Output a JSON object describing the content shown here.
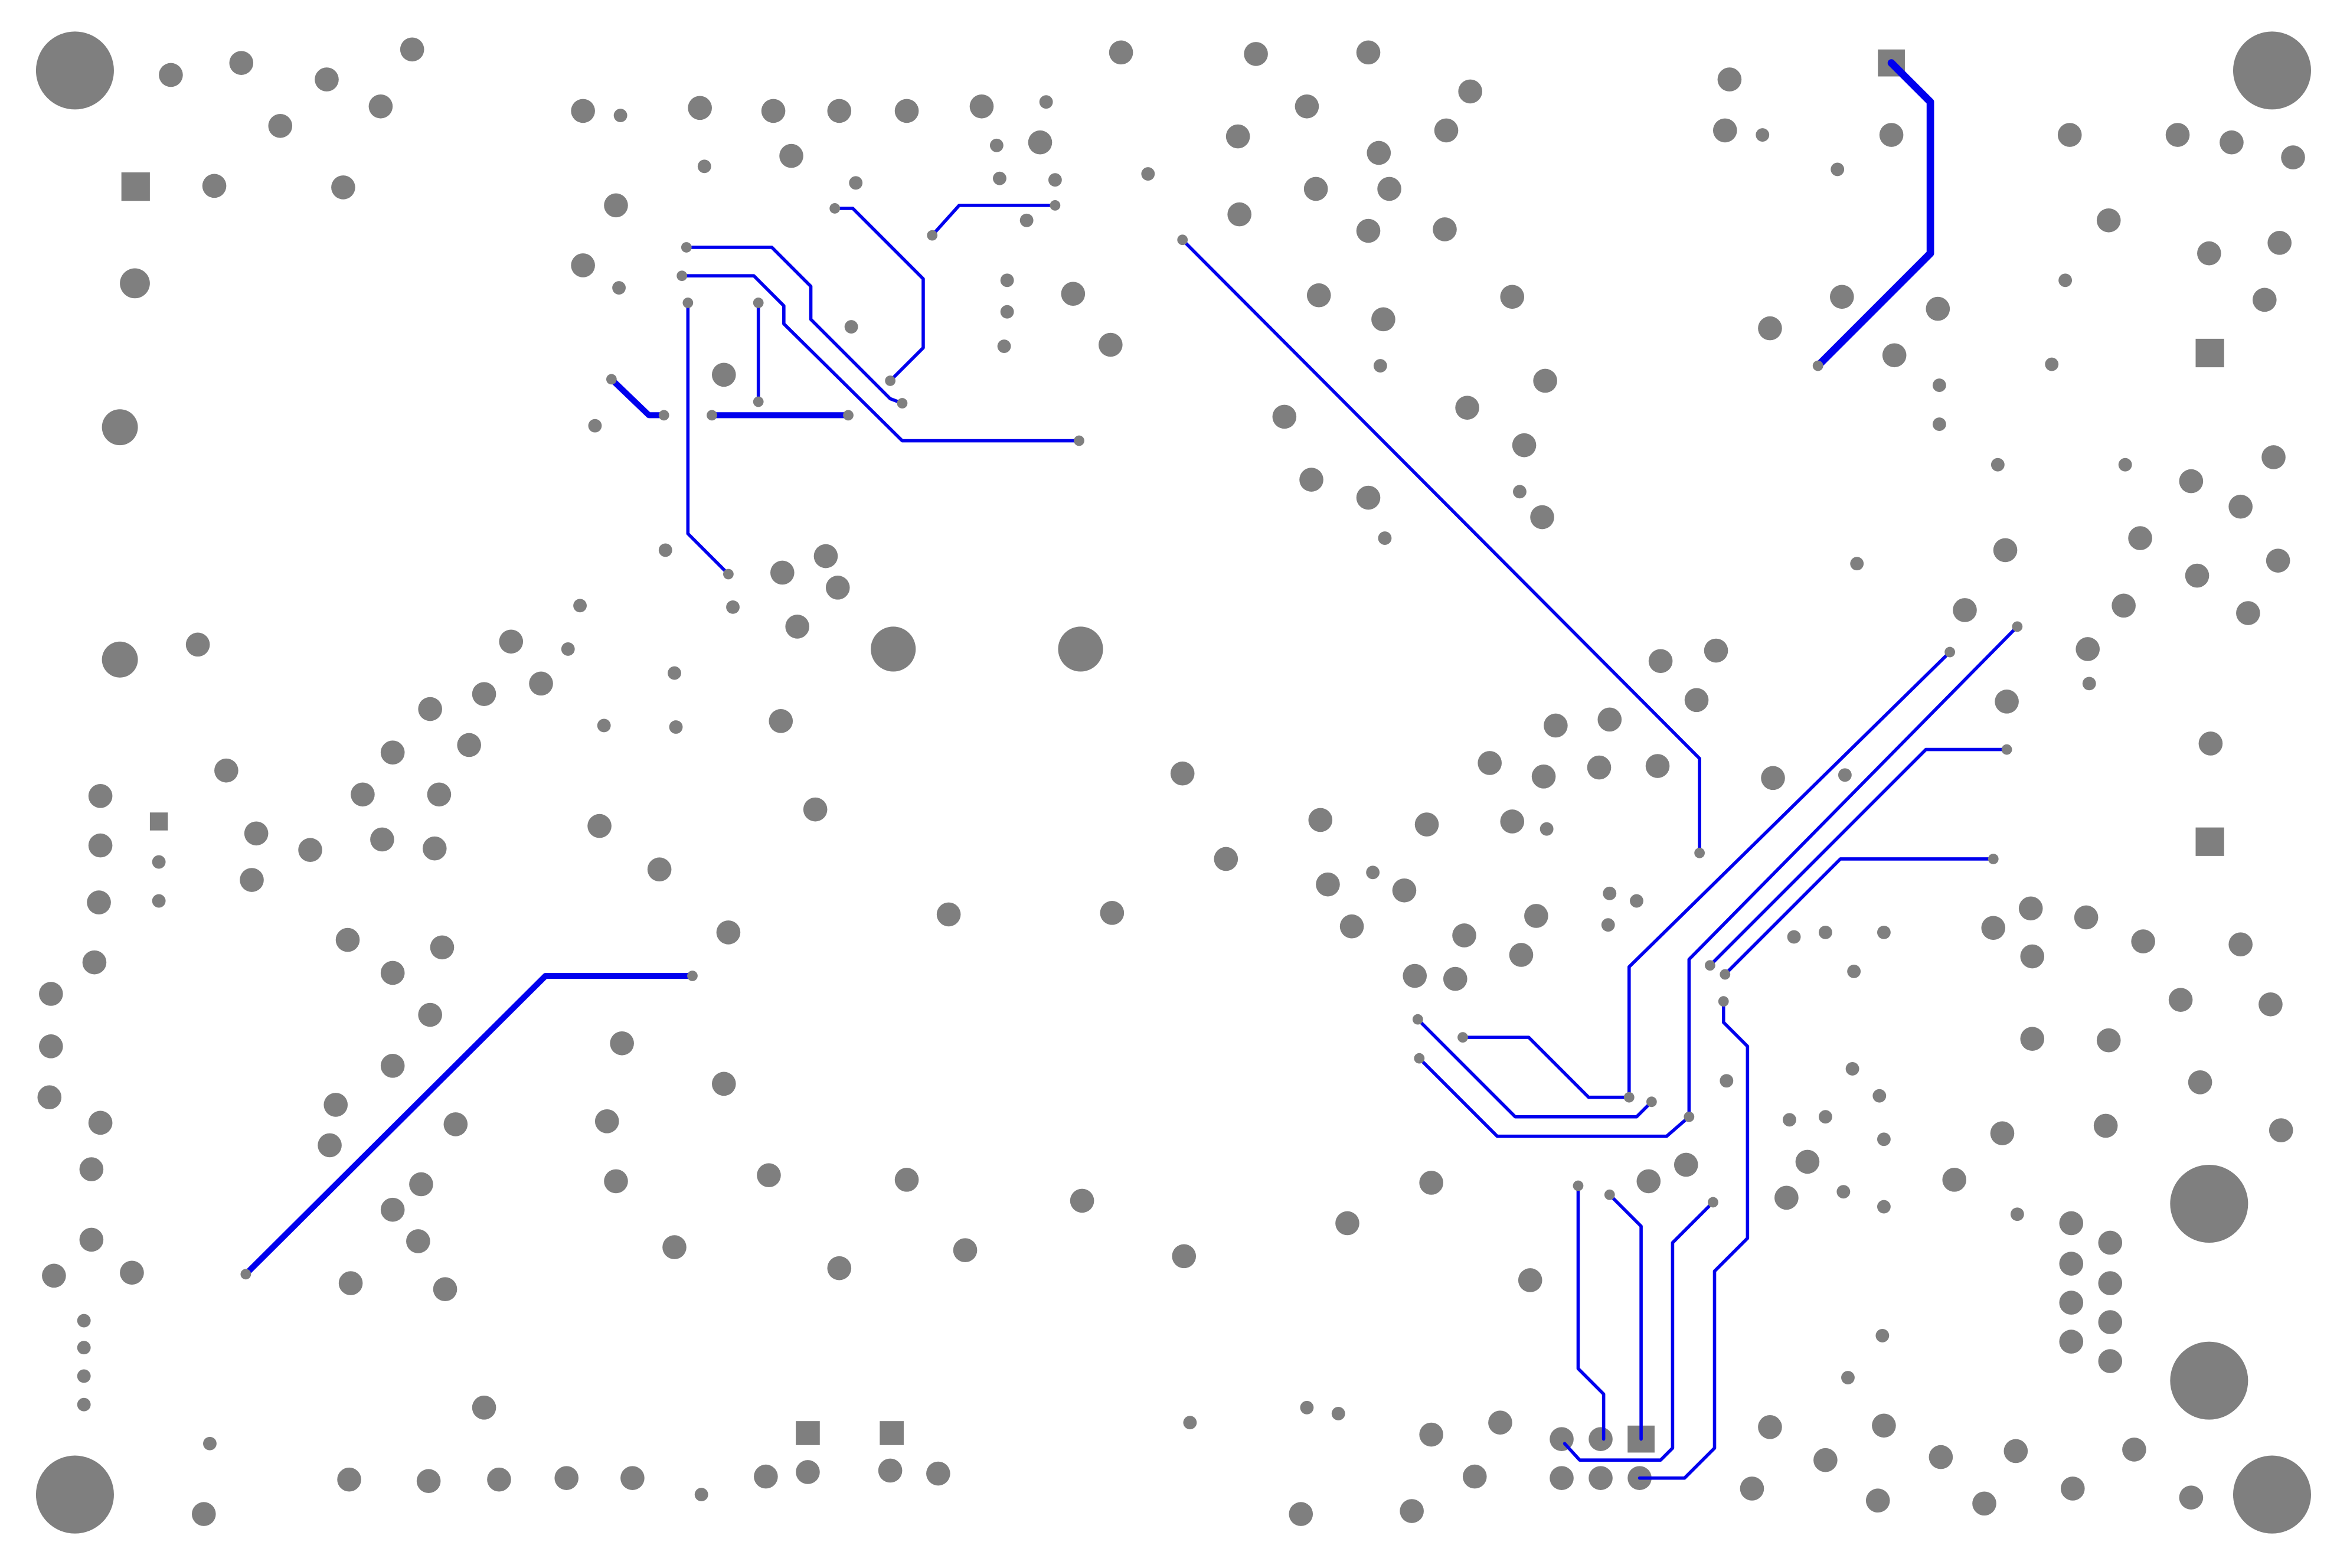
{
  "board": {
    "view": "pcb-copper-layer",
    "background_color": "#ffffff",
    "pad_color": "#7f7f7f",
    "trace_color": "#0000ee"
  }
}
